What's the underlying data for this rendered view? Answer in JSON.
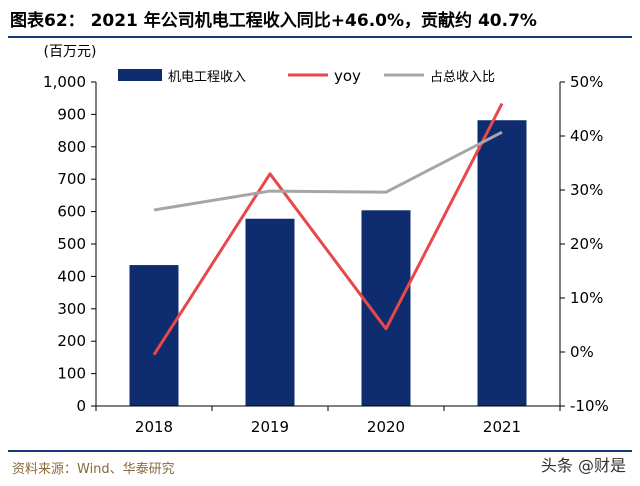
{
  "header": {
    "title": "图表62： 2021 年公司机电工程收入同比+46.0%，贡献约 40.7%"
  },
  "footer": {
    "source": "资料来源：Wind、华泰研究",
    "watermark": "头条 @财是"
  },
  "colors": {
    "bar": "#0f2d6e",
    "yoy": "#e8474b",
    "share": "#a6a6a6",
    "rule": "#1b3a7a"
  },
  "chart_data": {
    "type": "bar",
    "categories": [
      "2018",
      "2019",
      "2020",
      "2021"
    ],
    "y_unit_label": "(百万元)",
    "ylim": [
      0,
      1000
    ],
    "yticks": [
      "0",
      "100",
      "200",
      "300",
      "400",
      "500",
      "600",
      "700",
      "800",
      "900",
      "1,000"
    ],
    "y2lim": [
      -10,
      50
    ],
    "y2ticks": [
      "-10%",
      "0%",
      "10%",
      "20%",
      "30%",
      "40%",
      "50%"
    ],
    "legend_position": "top",
    "grid": false,
    "series": [
      {
        "name": "机电工程收入",
        "type": "bar",
        "axis": "left",
        "values": [
          435,
          578,
          604,
          882
        ]
      },
      {
        "name": "yoy",
        "type": "line",
        "axis": "right",
        "values": [
          -0.5,
          33.0,
          4.3,
          46.0
        ]
      },
      {
        "name": "占总收入比",
        "type": "line",
        "axis": "right",
        "values": [
          26.3,
          29.8,
          29.6,
          40.7
        ]
      }
    ]
  }
}
